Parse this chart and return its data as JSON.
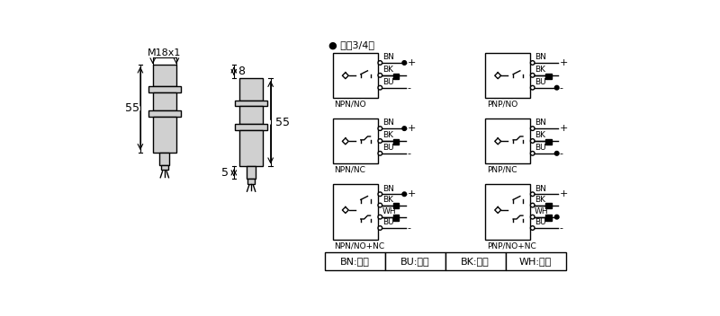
{
  "bg_color": "#ffffff",
  "line_color": "#000000",
  "fill_color": "#d0d0d0",
  "title_bullet": "● 直洖3/4线",
  "label_m18": "M18x1",
  "label_55_left": "55",
  "label_55_right": "55",
  "label_8": "8",
  "label_5": "5",
  "color_labels": [
    "BN:棕色",
    "BU:兰色",
    "BK:黑色",
    "WH:白色"
  ]
}
